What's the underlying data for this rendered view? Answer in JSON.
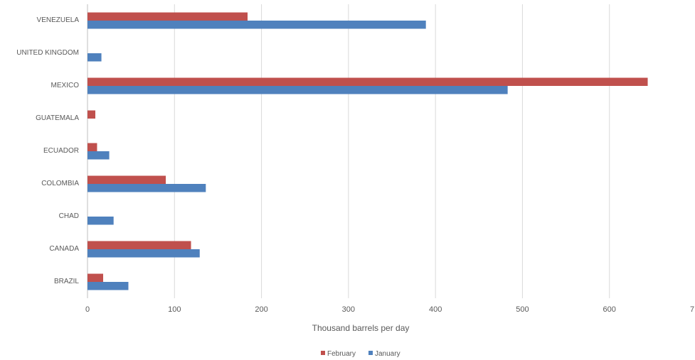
{
  "chart_data": {
    "type": "bar",
    "orientation": "horizontal",
    "categories": [
      "BRAZIL",
      "CANADA",
      "CHAD",
      "COLOMBIA",
      "ECUADOR",
      "GUATEMALA",
      "MEXICO",
      "UNITED KINGDOM",
      "VENEZUELA"
    ],
    "series": [
      {
        "name": "February",
        "color": "#c0504d",
        "values": [
          18,
          119,
          0,
          90,
          11,
          9,
          644,
          0,
          184
        ]
      },
      {
        "name": "January",
        "color": "#4f81bd",
        "values": [
          47,
          129,
          30,
          136,
          25,
          0,
          483,
          16,
          389
        ]
      }
    ],
    "xlabel": "Thousand barrels per day",
    "ylabel": "",
    "xlim": [
      0,
      700
    ],
    "xticks": [
      "0",
      "100",
      "200",
      "300",
      "400",
      "500",
      "600",
      "7"
    ],
    "grid": true,
    "legend_position": "bottom"
  }
}
